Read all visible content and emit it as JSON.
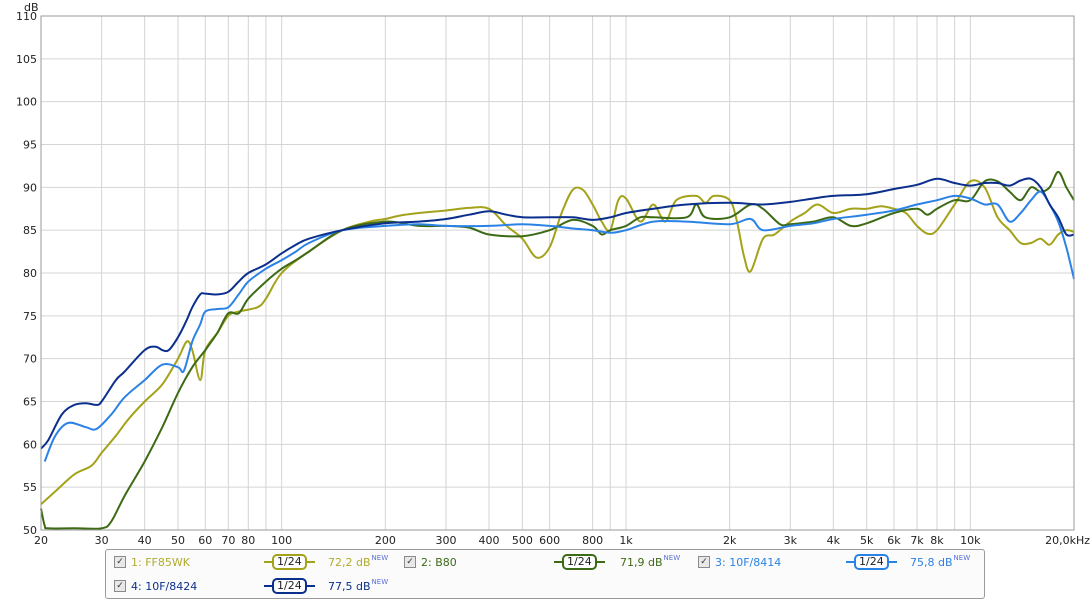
{
  "chart_data": {
    "type": "line",
    "x_scale": "log",
    "xlim": [
      20,
      20000
    ],
    "ylim": [
      50,
      110
    ],
    "y_unit": "dB",
    "x_unit": "Hz",
    "grid": true,
    "x_ticks": [
      {
        "v": 20,
        "l": "20"
      },
      {
        "v": 30,
        "l": "30"
      },
      {
        "v": 40,
        "l": "40"
      },
      {
        "v": 50,
        "l": "50"
      },
      {
        "v": 60,
        "l": "60"
      },
      {
        "v": 70,
        "l": "70"
      },
      {
        "v": 80,
        "l": "80"
      },
      {
        "v": 100,
        "l": "100"
      },
      {
        "v": 200,
        "l": "200"
      },
      {
        "v": 300,
        "l": "300"
      },
      {
        "v": 400,
        "l": "400"
      },
      {
        "v": 500,
        "l": "500"
      },
      {
        "v": 600,
        "l": "600"
      },
      {
        "v": 800,
        "l": "800"
      },
      {
        "v": 1000,
        "l": "1k"
      },
      {
        "v": 2000,
        "l": "2k"
      },
      {
        "v": 3000,
        "l": "3k"
      },
      {
        "v": 4000,
        "l": "4k"
      },
      {
        "v": 5000,
        "l": "5k"
      },
      {
        "v": 6000,
        "l": "6k"
      },
      {
        "v": 7000,
        "l": "7k"
      },
      {
        "v": 8000,
        "l": "8k"
      },
      {
        "v": 10000,
        "l": "10k"
      },
      {
        "v": 20000,
        "l": "20,0k"
      }
    ],
    "x_minor_grid": [
      90,
      900,
      9000
    ],
    "y_ticks": [
      50,
      55,
      60,
      65,
      70,
      75,
      80,
      85,
      90,
      95,
      100,
      105,
      110
    ],
    "series": [
      {
        "name": "FF85WK",
        "color": "#a3a21a",
        "points": [
          [
            20,
            53
          ],
          [
            22,
            54.5
          ],
          [
            25,
            56.5
          ],
          [
            28,
            57.5
          ],
          [
            30,
            59
          ],
          [
            33,
            61
          ],
          [
            36,
            63
          ],
          [
            40,
            65
          ],
          [
            45,
            67
          ],
          [
            50,
            70
          ],
          [
            53,
            72
          ],
          [
            55,
            71
          ],
          [
            58,
            67.5
          ],
          [
            60,
            71
          ],
          [
            65,
            73
          ],
          [
            70,
            75
          ],
          [
            75,
            75.5
          ],
          [
            85,
            76
          ],
          [
            90,
            77
          ],
          [
            100,
            80
          ],
          [
            120,
            82.5
          ],
          [
            150,
            85
          ],
          [
            180,
            86
          ],
          [
            200,
            86.3
          ],
          [
            220,
            86.7
          ],
          [
            250,
            87
          ],
          [
            300,
            87.3
          ],
          [
            350,
            87.6
          ],
          [
            400,
            87.5
          ],
          [
            450,
            85.5
          ],
          [
            500,
            84
          ],
          [
            550,
            81.8
          ],
          [
            600,
            83
          ],
          [
            650,
            87
          ],
          [
            700,
            89.7
          ],
          [
            750,
            89.7
          ],
          [
            800,
            88
          ],
          [
            850,
            86
          ],
          [
            900,
            85
          ],
          [
            950,
            88.5
          ],
          [
            1000,
            88.7
          ],
          [
            1100,
            86
          ],
          [
            1200,
            88
          ],
          [
            1300,
            86
          ],
          [
            1400,
            88.5
          ],
          [
            1600,
            89
          ],
          [
            1700,
            88.2
          ],
          [
            1800,
            89
          ],
          [
            2000,
            88.5
          ],
          [
            2100,
            86
          ],
          [
            2200,
            82
          ],
          [
            2300,
            80.2
          ],
          [
            2500,
            84
          ],
          [
            2700,
            84.5
          ],
          [
            3000,
            86
          ],
          [
            3300,
            87
          ],
          [
            3600,
            88
          ],
          [
            4000,
            87
          ],
          [
            4500,
            87.5
          ],
          [
            5000,
            87.5
          ],
          [
            5500,
            87.8
          ],
          [
            6000,
            87.5
          ],
          [
            6500,
            87
          ],
          [
            7000,
            85.5
          ],
          [
            7500,
            84.6
          ],
          [
            8000,
            85
          ],
          [
            9000,
            88
          ],
          [
            10000,
            90.7
          ],
          [
            11000,
            90
          ],
          [
            12000,
            86.5
          ],
          [
            13000,
            85
          ],
          [
            14000,
            83.5
          ],
          [
            15000,
            83.5
          ],
          [
            16000,
            84
          ],
          [
            17000,
            83.3
          ],
          [
            18000,
            84.5
          ],
          [
            19000,
            85
          ],
          [
            20000,
            84.8
          ]
        ]
      },
      {
        "name": "B80",
        "color": "#3d6a15",
        "points": [
          [
            20,
            52.5
          ],
          [
            20.5,
            50.5
          ],
          [
            21,
            50.2
          ],
          [
            25,
            50.2
          ],
          [
            30,
            50.2
          ],
          [
            32,
            51
          ],
          [
            35,
            54
          ],
          [
            40,
            58
          ],
          [
            45,
            62
          ],
          [
            50,
            66
          ],
          [
            55,
            69
          ],
          [
            60,
            71
          ],
          [
            65,
            73
          ],
          [
            70,
            75.3
          ],
          [
            75,
            75.3
          ],
          [
            80,
            77
          ],
          [
            90,
            79
          ],
          [
            100,
            80.5
          ],
          [
            110,
            81.5
          ],
          [
            120,
            82.5
          ],
          [
            150,
            85
          ],
          [
            200,
            86
          ],
          [
            250,
            85.5
          ],
          [
            300,
            85.5
          ],
          [
            350,
            85.3
          ],
          [
            400,
            84.5
          ],
          [
            500,
            84.3
          ],
          [
            600,
            85
          ],
          [
            700,
            86.2
          ],
          [
            800,
            85.5
          ],
          [
            850,
            84.5
          ],
          [
            900,
            85
          ],
          [
            1000,
            85.5
          ],
          [
            1100,
            86.5
          ],
          [
            1200,
            86.5
          ],
          [
            1500,
            86.5
          ],
          [
            1600,
            88
          ],
          [
            1700,
            86.5
          ],
          [
            2000,
            86.5
          ],
          [
            2300,
            88
          ],
          [
            2500,
            87.5
          ],
          [
            2800,
            85.7
          ],
          [
            3000,
            85.7
          ],
          [
            3500,
            86
          ],
          [
            4000,
            86.5
          ],
          [
            4500,
            85.5
          ],
          [
            5000,
            85.8
          ],
          [
            6000,
            87
          ],
          [
            7000,
            87.5
          ],
          [
            7500,
            86.8
          ],
          [
            8000,
            87.5
          ],
          [
            9000,
            88.5
          ],
          [
            10000,
            88.5
          ],
          [
            11000,
            90.7
          ],
          [
            12000,
            90.7
          ],
          [
            13000,
            89.5
          ],
          [
            14000,
            88.5
          ],
          [
            15000,
            90
          ],
          [
            16000,
            89.5
          ],
          [
            17000,
            90
          ],
          [
            18000,
            91.8
          ],
          [
            19000,
            90
          ],
          [
            20000,
            88.5
          ]
        ]
      },
      {
        "name": "10F/8414",
        "color": "#2b82e6",
        "points": [
          [
            20.5,
            58
          ],
          [
            22,
            61
          ],
          [
            24,
            62.5
          ],
          [
            27,
            62
          ],
          [
            29,
            61.8
          ],
          [
            32,
            63.5
          ],
          [
            35,
            65.5
          ],
          [
            40,
            67.5
          ],
          [
            45,
            69.3
          ],
          [
            50,
            69
          ],
          [
            52,
            68.6
          ],
          [
            55,
            72
          ],
          [
            58,
            74
          ],
          [
            60,
            75.5
          ],
          [
            65,
            75.8
          ],
          [
            70,
            76
          ],
          [
            75,
            77.5
          ],
          [
            80,
            79
          ],
          [
            90,
            80.5
          ],
          [
            100,
            81.5
          ],
          [
            110,
            82.5
          ],
          [
            120,
            83.5
          ],
          [
            150,
            85
          ],
          [
            200,
            85.5
          ],
          [
            250,
            85.7
          ],
          [
            300,
            85.5
          ],
          [
            400,
            85.5
          ],
          [
            500,
            85.7
          ],
          [
            600,
            85.5
          ],
          [
            700,
            85.2
          ],
          [
            800,
            85
          ],
          [
            900,
            84.7
          ],
          [
            1000,
            85
          ],
          [
            1200,
            86
          ],
          [
            1500,
            86
          ],
          [
            2000,
            85.7
          ],
          [
            2300,
            86.3
          ],
          [
            2500,
            85
          ],
          [
            3000,
            85.5
          ],
          [
            3500,
            85.8
          ],
          [
            4000,
            86.3
          ],
          [
            5000,
            86.8
          ],
          [
            6000,
            87.3
          ],
          [
            7000,
            88
          ],
          [
            8000,
            88.5
          ],
          [
            9000,
            89
          ],
          [
            10000,
            88.7
          ],
          [
            11000,
            88
          ],
          [
            12000,
            88
          ],
          [
            13000,
            86
          ],
          [
            14000,
            87
          ],
          [
            15000,
            88.5
          ],
          [
            16000,
            89.5
          ],
          [
            17000,
            88
          ],
          [
            18000,
            86
          ],
          [
            19000,
            83
          ],
          [
            20000,
            79.3
          ]
        ]
      },
      {
        "name": "10F/8424",
        "color": "#0b2f8c",
        "points": [
          [
            20,
            59.5
          ],
          [
            21,
            60.5
          ],
          [
            23,
            63.5
          ],
          [
            25,
            64.6
          ],
          [
            27,
            64.8
          ],
          [
            29,
            64.6
          ],
          [
            30,
            65
          ],
          [
            33,
            67.5
          ],
          [
            35,
            68.5
          ],
          [
            40,
            71
          ],
          [
            43,
            71.4
          ],
          [
            45,
            71
          ],
          [
            47,
            71
          ],
          [
            50,
            72.5
          ],
          [
            53,
            74.5
          ],
          [
            55,
            76
          ],
          [
            58,
            77.5
          ],
          [
            60,
            77.6
          ],
          [
            65,
            77.5
          ],
          [
            70,
            77.8
          ],
          [
            75,
            79
          ],
          [
            80,
            80
          ],
          [
            90,
            81
          ],
          [
            100,
            82.3
          ],
          [
            110,
            83.3
          ],
          [
            120,
            84
          ],
          [
            150,
            85
          ],
          [
            200,
            85.8
          ],
          [
            250,
            86
          ],
          [
            300,
            86.3
          ],
          [
            350,
            86.8
          ],
          [
            400,
            87.2
          ],
          [
            450,
            86.8
          ],
          [
            500,
            86.5
          ],
          [
            600,
            86.5
          ],
          [
            700,
            86.5
          ],
          [
            800,
            86.2
          ],
          [
            900,
            86.5
          ],
          [
            1000,
            87
          ],
          [
            1200,
            87.5
          ],
          [
            1500,
            88
          ],
          [
            2000,
            88.2
          ],
          [
            2500,
            88
          ],
          [
            3000,
            88.3
          ],
          [
            3500,
            88.7
          ],
          [
            4000,
            89
          ],
          [
            5000,
            89.2
          ],
          [
            6000,
            89.8
          ],
          [
            7000,
            90.3
          ],
          [
            8000,
            91
          ],
          [
            9000,
            90.5
          ],
          [
            10000,
            90.2
          ],
          [
            11000,
            90.5
          ],
          [
            12000,
            90.5
          ],
          [
            13000,
            90.2
          ],
          [
            14000,
            90.8
          ],
          [
            15000,
            91
          ],
          [
            16000,
            90
          ],
          [
            17000,
            88
          ],
          [
            18000,
            86.5
          ],
          [
            19000,
            84.5
          ],
          [
            20000,
            84.5
          ]
        ]
      }
    ]
  },
  "legend": [
    {
      "checked": "✓",
      "label": "1: FF85WK",
      "smoothing": "1/24",
      "level_value": "72,2 dB",
      "level_tag": "NEW",
      "color": "#a3a21a",
      "label_color": "#b0ab2c"
    },
    {
      "checked": "✓",
      "label": "2: B80",
      "smoothing": "1/24",
      "level_value": "71,9 dB",
      "level_tag": "NEW",
      "color": "#3d6a15",
      "label_color": "#3d6a15"
    },
    {
      "checked": "✓",
      "label": "3: 10F/8414",
      "smoothing": "1/24",
      "level_value": "75,8 dB",
      "level_tag": "NEW",
      "color": "#2b82e6",
      "label_color": "#2b82e6"
    },
    {
      "checked": "✓",
      "label": "4: 10F/8424",
      "smoothing": "1/24",
      "level_value": "77,5 dB",
      "level_tag": "NEW",
      "color": "#0b2f8c",
      "label_color": "#0b2f8c"
    }
  ]
}
